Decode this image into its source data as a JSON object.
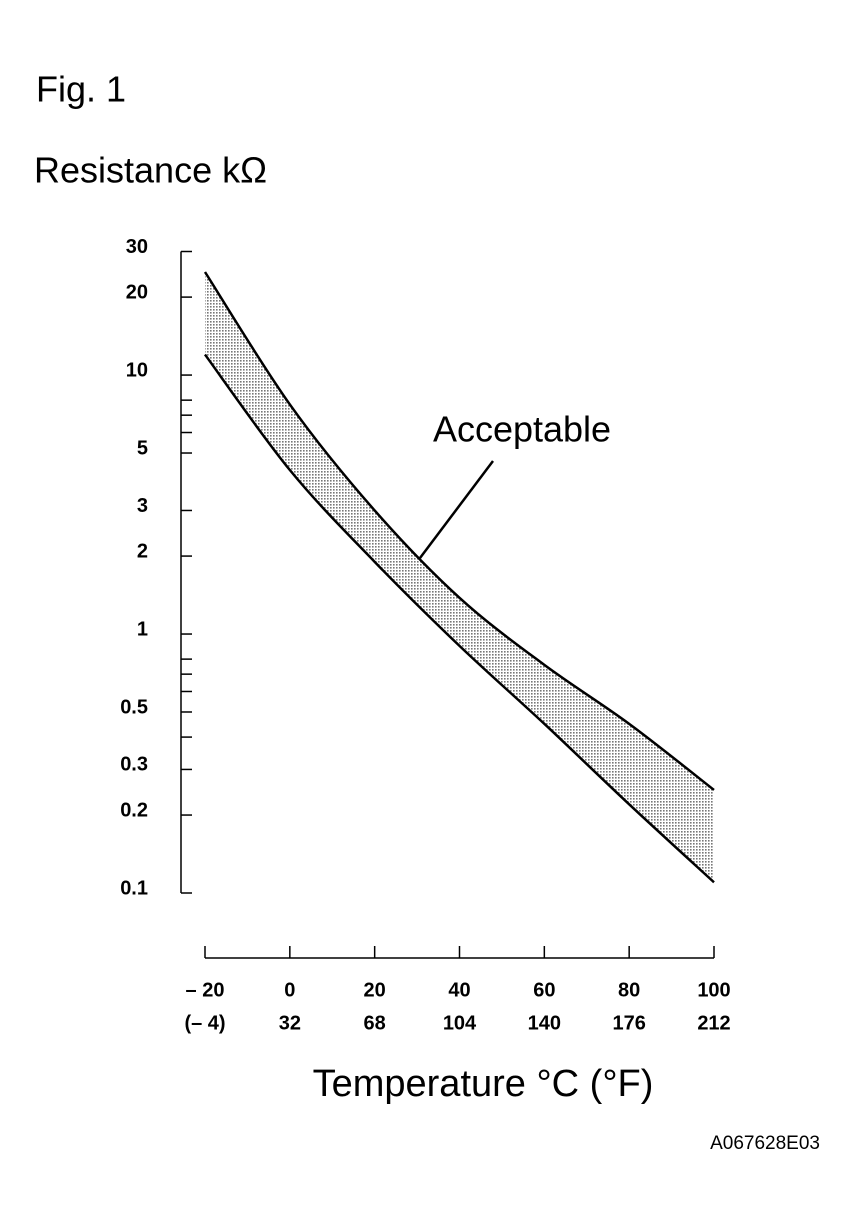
{
  "chart_data": {
    "type": "band",
    "figure_label": "Fig. 1",
    "ylabel": "Resistance kΩ",
    "xlabel": "Temperature °C (°F)",
    "annotation": "Acceptable",
    "code": "A067628E03",
    "x": [
      -20,
      0,
      20,
      40,
      60,
      80,
      100
    ],
    "series": [
      {
        "color": "#000000",
        "values": [
          25,
          7.7,
          3.0,
          1.38,
          0.76,
          0.45,
          0.25
        ]
      },
      {
        "color": "#000000",
        "values": [
          12,
          4.3,
          1.9,
          0.9,
          0.45,
          0.22,
          0.11
        ]
      }
    ],
    "band_color": "#c8c8c8",
    "log_y": true,
    "xlim": [
      -20,
      100
    ],
    "ylim": [
      0.1,
      30
    ],
    "xticks": [
      {
        "value": -20,
        "label": "– 20"
      },
      0,
      20,
      40,
      60,
      80,
      100
    ],
    "xticks_f": [
      {
        "value": -4,
        "label": "(– 4)"
      },
      32,
      68,
      104,
      140,
      176,
      212
    ],
    "yticks": [
      0.1,
      0.2,
      0.3,
      0.5,
      1,
      2,
      3,
      5,
      10,
      20,
      30
    ],
    "minor_yticks": [
      0.4,
      0.6,
      0.7,
      0.8,
      6,
      7,
      8
    ]
  }
}
